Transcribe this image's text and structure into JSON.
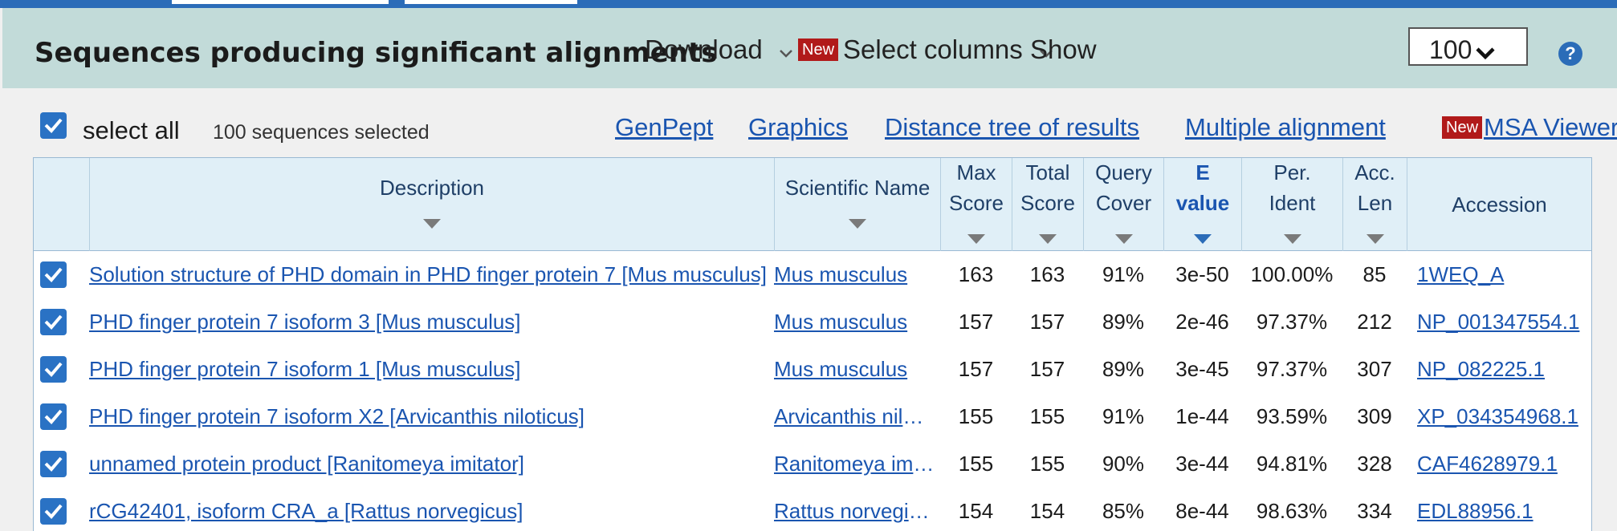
{
  "header": {
    "title": "Sequences producing significant alignments",
    "download_label": "Download",
    "new_badge": "New",
    "select_columns_label": "Select columns",
    "show_label": "Show",
    "show_value": "100",
    "help_symbol": "?"
  },
  "toolbar": {
    "select_all_label": "select all",
    "selected_count": "100 sequences selected",
    "links": [
      "GenPept",
      "Graphics",
      "Distance tree of results",
      "Multiple alignment"
    ],
    "msa_badge": "New",
    "msa_label": "MSA Viewer"
  },
  "table": {
    "columns": [
      {
        "line1": "Description",
        "line2": ""
      },
      {
        "line1": "Scientific Name",
        "line2": ""
      },
      {
        "line1": "Max",
        "line2": "Score"
      },
      {
        "line1": "Total",
        "line2": "Score"
      },
      {
        "line1": "Query",
        "line2": "Cover"
      },
      {
        "line1": "E",
        "line2": "value"
      },
      {
        "line1": "Per.",
        "line2": "Ident"
      },
      {
        "line1": "Acc.",
        "line2": "Len"
      },
      {
        "line1": "Accession",
        "line2": ""
      }
    ],
    "active_sort_column": "E value",
    "rows": [
      {
        "description": "Solution structure of PHD domain in PHD finger protein 7 [Mus musculus]",
        "scientific_name": "Mus musculus",
        "max_score": "163",
        "total_score": "163",
        "query_cover": "91%",
        "e_value": "3e-50",
        "per_ident": "100.00%",
        "acc_len": "85",
        "accession": "1WEQ_A"
      },
      {
        "description": "PHD finger protein 7 isoform 3 [Mus musculus]",
        "scientific_name": "Mus musculus",
        "max_score": "157",
        "total_score": "157",
        "query_cover": "89%",
        "e_value": "2e-46",
        "per_ident": "97.37%",
        "acc_len": "212",
        "accession": "NP_001347554.1"
      },
      {
        "description": "PHD finger protein 7 isoform 1 [Mus musculus]",
        "scientific_name": "Mus musculus",
        "max_score": "157",
        "total_score": "157",
        "query_cover": "89%",
        "e_value": "3e-45",
        "per_ident": "97.37%",
        "acc_len": "307",
        "accession": "NP_082225.1"
      },
      {
        "description": "PHD finger protein 7 isoform X2 [Arvicanthis niloticus]",
        "scientific_name": "Arvicanthis niloticus",
        "max_score": "155",
        "total_score": "155",
        "query_cover": "91%",
        "e_value": "1e-44",
        "per_ident": "93.59%",
        "acc_len": "309",
        "accession": "XP_034354968.1"
      },
      {
        "description": "unnamed protein product [Ranitomeya imitator]",
        "scientific_name": "Ranitomeya imitator",
        "max_score": "155",
        "total_score": "155",
        "query_cover": "90%",
        "e_value": "3e-44",
        "per_ident": "94.81%",
        "acc_len": "328",
        "accession": "CAF4628979.1"
      },
      {
        "description": "rCG42401, isoform CRA_a [Rattus norvegicus]",
        "scientific_name": "Rattus norvegicus",
        "max_score": "154",
        "total_score": "154",
        "query_cover": "85%",
        "e_value": "8e-44",
        "per_ident": "98.63%",
        "acc_len": "334",
        "accession": "EDL88956.1"
      }
    ]
  },
  "colors": {
    "header_bg": "#c2dbd9",
    "accent_blue": "#2b6cb8",
    "link": "#1a55b0",
    "new_badge": "#b11a1a",
    "table_head_bg": "#e0eff7"
  }
}
